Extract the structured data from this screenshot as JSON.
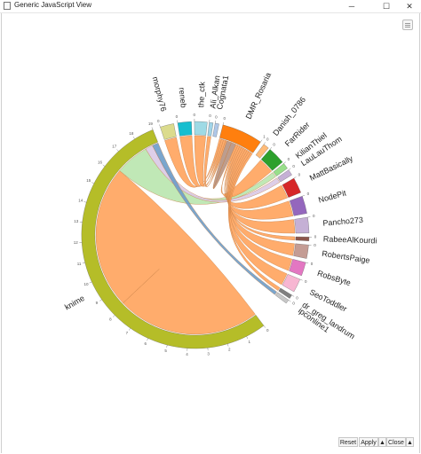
{
  "window": {
    "title": "Generic JavaScript View",
    "minimize_glyph": "─",
    "maximize_glyph": "☐",
    "close_glyph": "✕"
  },
  "footer": {
    "reset_label": "Reset",
    "apply_label": "Apply",
    "apply_arrow": "▲",
    "close_label": "Close",
    "close_arrow": "▲"
  },
  "icons": {
    "app": "window-icon",
    "view_settings": "menu-grid-icon"
  },
  "chart_data": {
    "type": "chord",
    "title": "",
    "groups": [
      {
        "name": "knime",
        "color": "#b5bd28",
        "ticks": [
          "0",
          "1",
          "2",
          "3",
          "4",
          "5",
          "6",
          "7",
          "8",
          "9",
          "10",
          "11",
          "12",
          "13",
          "14",
          "15",
          "16",
          "17",
          "18",
          "19"
        ]
      },
      {
        "name": "morphy76",
        "color": "#dbdb8d",
        "ticks": [
          "0"
        ]
      },
      {
        "name": "reneb",
        "color": "#17becf",
        "ticks": [
          "0"
        ]
      },
      {
        "name": "the_ctk",
        "color": "#9edae5",
        "ticks": [
          "0"
        ]
      },
      {
        "name": "Ali_Alkan",
        "color": "#a0d4e8",
        "ticks": [
          "0"
        ]
      },
      {
        "name": "Cognata1",
        "color": "#aec7e8",
        "ticks": [
          "0"
        ]
      },
      {
        "name": "DMR_Rosaria",
        "color": "#ff7f0e",
        "ticks": [
          "0",
          "1"
        ]
      },
      {
        "name": "Danish_0786",
        "color": "#ffbb78",
        "ticks": [
          "0"
        ]
      },
      {
        "name": "FarRider",
        "color": "#2ca02c",
        "ticks": [
          "0"
        ]
      },
      {
        "name": "KilianThiel",
        "color": "#98df8a",
        "ticks": [
          "0"
        ]
      },
      {
        "name": "LauLauThom",
        "color": "#c5b0d5",
        "ticks": [
          "0"
        ]
      },
      {
        "name": "MattBasically",
        "color": "#d62728",
        "ticks": [
          "0"
        ]
      },
      {
        "name": "NodePit",
        "color": "#9467bd",
        "ticks": [
          "0"
        ]
      },
      {
        "name": "Pancho273",
        "color": "#c5b0d5",
        "ticks": [
          "0"
        ]
      },
      {
        "name": "RabeeAlKourdi",
        "color": "#8c564b",
        "ticks": [
          "0"
        ]
      },
      {
        "name": "RobertsPaige",
        "color": "#c49c94",
        "ticks": [
          "0"
        ]
      },
      {
        "name": "RobsByte",
        "color": "#e377c2",
        "ticks": [
          "0"
        ]
      },
      {
        "name": "SeoToddler",
        "color": "#f7b6d2",
        "ticks": [
          "0"
        ]
      },
      {
        "name": "dr_greg_landrum",
        "color": "#7f7f7f",
        "ticks": [
          "0"
        ]
      },
      {
        "name": "ipconline1",
        "color": "#c7c7c7",
        "ticks": [
          "0"
        ]
      }
    ],
    "chords": [
      {
        "source": "knime",
        "target": "knime",
        "value": 11.5,
        "color": "#ffa35c"
      },
      {
        "source": "knime",
        "target": "KilianThiel",
        "value": 2.7,
        "color": "#b9e5ae"
      },
      {
        "source": "knime",
        "target": "LauLauThom",
        "value": 0.6,
        "color": "#d9c9e6"
      },
      {
        "source": "knime",
        "target": "ipconline1",
        "value": 0.5,
        "color": "#6b9cc9"
      },
      {
        "source": "DMR_Rosaria",
        "target": "morphy76",
        "value": 0.3,
        "color": "#ffa35c"
      },
      {
        "source": "DMR_Rosaria",
        "target": "reneb",
        "value": 0.3,
        "color": "#ffa35c"
      },
      {
        "source": "DMR_Rosaria",
        "target": "the_ctk",
        "value": 0.3,
        "color": "#ffa35c"
      },
      {
        "source": "DMR_Rosaria",
        "target": "Ali_Alkan",
        "value": 0.2,
        "color": "#ffa35c"
      },
      {
        "source": "DMR_Rosaria",
        "target": "DMR_Rosaria",
        "value": 0.7,
        "color": "#b59282"
      },
      {
        "source": "DMR_Rosaria",
        "target": "FarRider",
        "value": 0.3,
        "color": "#ffa35c"
      },
      {
        "source": "DMR_Rosaria",
        "target": "MattBasically",
        "value": 0.3,
        "color": "#ffa35c"
      },
      {
        "source": "DMR_Rosaria",
        "target": "NodePit",
        "value": 0.3,
        "color": "#ffa35c"
      },
      {
        "source": "DMR_Rosaria",
        "target": "Pancho273",
        "value": 0.3,
        "color": "#ffa35c"
      },
      {
        "source": "DMR_Rosaria",
        "target": "RabeeAlKourdi",
        "value": 0.3,
        "color": "#ffa35c"
      },
      {
        "source": "DMR_Rosaria",
        "target": "RobertsPaige",
        "value": 0.3,
        "color": "#ffa35c"
      },
      {
        "source": "DMR_Rosaria",
        "target": "RobsByte",
        "value": 0.3,
        "color": "#ffa35c"
      },
      {
        "source": "DMR_Rosaria",
        "target": "SeoToddler",
        "value": 0.3,
        "color": "#ffa35c"
      },
      {
        "source": "DMR_Rosaria",
        "target": "dr_greg_landrum",
        "value": 0.3,
        "color": "#ffa35c"
      }
    ]
  }
}
